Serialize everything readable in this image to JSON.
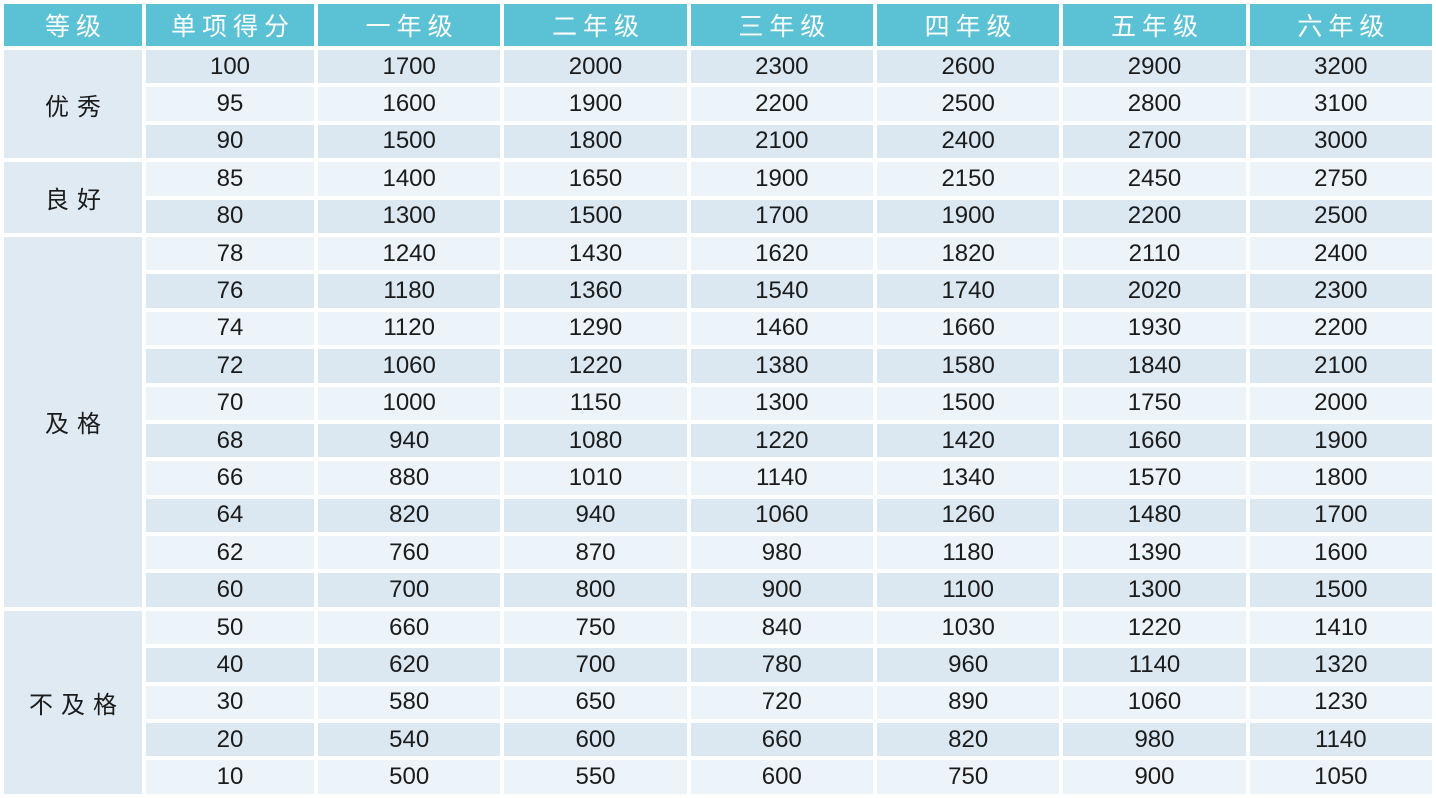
{
  "table": {
    "headers": [
      "等级",
      "单项得分",
      "一年级",
      "二年级",
      "三年级",
      "四年级",
      "五年级",
      "六年级"
    ],
    "sections": [
      {
        "grade": "优秀",
        "rows": [
          {
            "score": "100",
            "values": [
              "1700",
              "2000",
              "2300",
              "2600",
              "2900",
              "3200"
            ]
          },
          {
            "score": "95",
            "values": [
              "1600",
              "1900",
              "2200",
              "2500",
              "2800",
              "3100"
            ]
          },
          {
            "score": "90",
            "values": [
              "1500",
              "1800",
              "2100",
              "2400",
              "2700",
              "3000"
            ]
          }
        ]
      },
      {
        "grade": "良好",
        "rows": [
          {
            "score": "85",
            "values": [
              "1400",
              "1650",
              "1900",
              "2150",
              "2450",
              "2750"
            ]
          },
          {
            "score": "80",
            "values": [
              "1300",
              "1500",
              "1700",
              "1900",
              "2200",
              "2500"
            ]
          }
        ]
      },
      {
        "grade": "及格",
        "rows": [
          {
            "score": "78",
            "values": [
              "1240",
              "1430",
              "1620",
              "1820",
              "2110",
              "2400"
            ]
          },
          {
            "score": "76",
            "values": [
              "1180",
              "1360",
              "1540",
              "1740",
              "2020",
              "2300"
            ]
          },
          {
            "score": "74",
            "values": [
              "1120",
              "1290",
              "1460",
              "1660",
              "1930",
              "2200"
            ]
          },
          {
            "score": "72",
            "values": [
              "1060",
              "1220",
              "1380",
              "1580",
              "1840",
              "2100"
            ]
          },
          {
            "score": "70",
            "values": [
              "1000",
              "1150",
              "1300",
              "1500",
              "1750",
              "2000"
            ]
          },
          {
            "score": "68",
            "values": [
              "940",
              "1080",
              "1220",
              "1420",
              "1660",
              "1900"
            ]
          },
          {
            "score": "66",
            "values": [
              "880",
              "1010",
              "1140",
              "1340",
              "1570",
              "1800"
            ]
          },
          {
            "score": "64",
            "values": [
              "820",
              "940",
              "1060",
              "1260",
              "1480",
              "1700"
            ]
          },
          {
            "score": "62",
            "values": [
              "760",
              "870",
              "980",
              "1180",
              "1390",
              "1600"
            ]
          },
          {
            "score": "60",
            "values": [
              "700",
              "800",
              "900",
              "1100",
              "1300",
              "1500"
            ]
          }
        ]
      },
      {
        "grade": "不及格",
        "rows": [
          {
            "score": "50",
            "values": [
              "660",
              "750",
              "840",
              "1030",
              "1220",
              "1410"
            ]
          },
          {
            "score": "40",
            "values": [
              "620",
              "700",
              "780",
              "960",
              "1140",
              "1320"
            ]
          },
          {
            "score": "30",
            "values": [
              "580",
              "650",
              "720",
              "890",
              "1060",
              "1230"
            ]
          },
          {
            "score": "20",
            "values": [
              "540",
              "600",
              "660",
              "820",
              "980",
              "1140"
            ]
          },
          {
            "score": "10",
            "values": [
              "500",
              "550",
              "600",
              "750",
              "900",
              "1050"
            ]
          }
        ]
      }
    ],
    "colors": {
      "header_bg": "#5bc2d6",
      "header_text": "#ffffff",
      "row_blue": "#dbe8f2",
      "row_pale": "#edf4f9",
      "grade_bg": "#dfeaf3",
      "cell_text": "#1b1b1b",
      "grid_white": "#ffffff"
    }
  }
}
